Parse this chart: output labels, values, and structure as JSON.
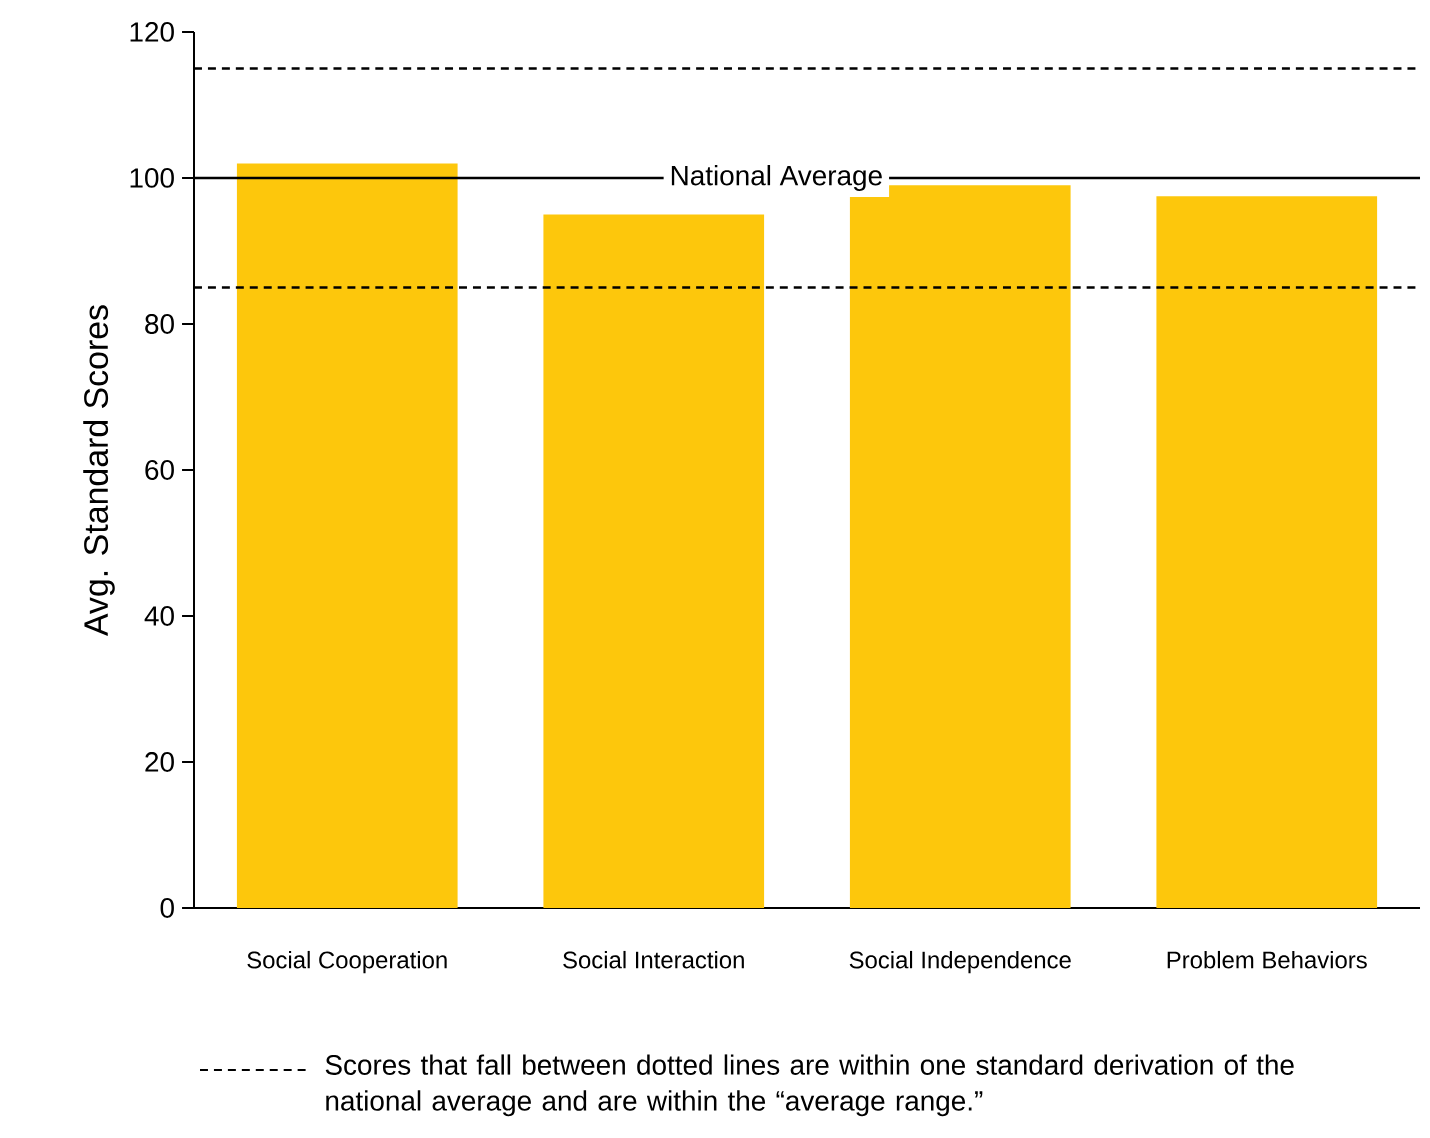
{
  "chart_data": {
    "type": "bar",
    "ylabel": "Avg. Standard Scores",
    "categories": [
      "Social Cooperation",
      "Social Interaction",
      "Social Independence",
      "Problem Behaviors"
    ],
    "values": [
      102,
      95,
      99,
      97.5
    ],
    "color": "#fdc70c",
    "ylim": [
      0,
      120
    ],
    "yticks": [
      0,
      20,
      40,
      60,
      80,
      100,
      120
    ],
    "grid": false,
    "ref_lines": [
      {
        "axis": "y",
        "value": 115,
        "line_style": "dashed"
      },
      {
        "axis": "y",
        "value": 100,
        "label": "National Average",
        "line_style": "solid"
      },
      {
        "axis": "y",
        "value": 85,
        "line_style": "dashed"
      }
    ],
    "annotations": [
      "Scores that fall between dotted lines are within one standard derivation of the national average and are within the “average range.”"
    ]
  }
}
